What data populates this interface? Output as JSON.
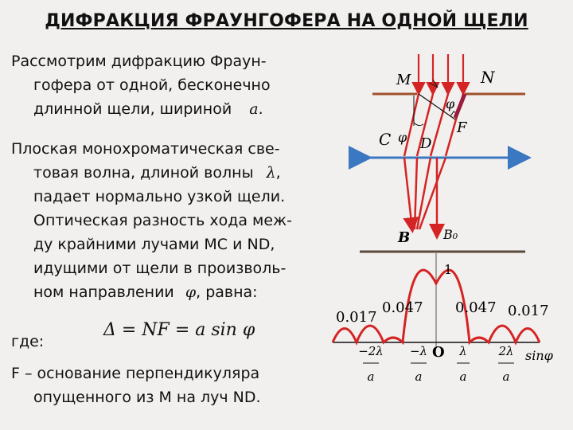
{
  "title": "ДИФРАКЦИЯ ФРАУНГОФЕРА НА ОДНОЙ ЩЕЛИ",
  "text": {
    "p1_l1": "Рассмотрим дифракцию Фраун-",
    "p1_l2": "гофера от одной, бесконечно",
    "p1_l3_a": "длинной щели, шириной",
    "p1_l3_sym": "a",
    "p1_l3_b": ".",
    "p2_l1": "Плоская монохроматическая све-",
    "p2_l2_a": "товая волна, длиной волны",
    "p2_l2_sym": "λ",
    "p2_l2_b": ",",
    "p2_l3": "падает нормально узкой щели.",
    "p2_l4": "Оптическая разность хода меж-",
    "p2_l5": "ду крайними лучами MC и ND,",
    "p2_l6": "идущими от щели в произволь-",
    "p2_l7_a": "ном направлении",
    "p2_l7_sym": "φ",
    "p2_l7_b": ", равна:",
    "where": "где:",
    "formula": "Δ = NF = a sin φ",
    "p3_l1": "F – основание перпендикуляра",
    "p3_l2": "опущенного из M на луч ND."
  },
  "diagram": {
    "labels": {
      "M": "M",
      "N": "N",
      "F": "F",
      "C": "C",
      "D": "D",
      "phi": "φ",
      "B": "B",
      "B0": "B₀",
      "one": "1",
      "zero": "O",
      "axis": "sinφ"
    },
    "peak_values": {
      "left_outer": "0.017",
      "left_inner": "0.047",
      "right_inner": "0.047",
      "right_outer": "0.017"
    },
    "ticks": [
      {
        "num": "−2λ",
        "den": "a"
      },
      {
        "num": "−λ",
        "den": "a"
      },
      {
        "num": "λ",
        "den": "a"
      },
      {
        "num": "2λ",
        "den": "a"
      }
    ],
    "colors": {
      "rays": "#d42424",
      "lens": "#3a78c2",
      "screen": "#5a4a3a",
      "slit": "#a0522d"
    }
  }
}
